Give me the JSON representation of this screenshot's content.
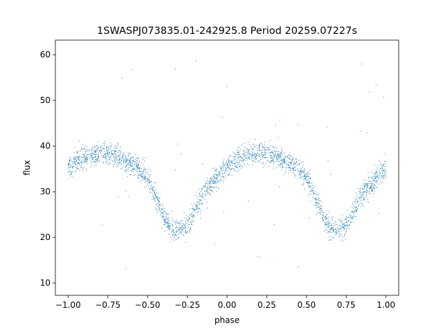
{
  "chart_data": {
    "type": "scatter",
    "title": "1SWASPJ073835.01-242925.8 Period 20259.07227s",
    "xlabel": "phase",
    "ylabel": "flux",
    "xlim": [
      -1.08,
      1.08
    ],
    "ylim": [
      7.3,
      63.2
    ],
    "grid": false,
    "legend": "none",
    "point_color": "#1f77b4",
    "x_ticks": [
      -1.0,
      -0.75,
      -0.5,
      -0.25,
      0.0,
      0.25,
      0.5,
      0.75,
      1.0
    ],
    "x_tick_labels": [
      "−1.00",
      "−0.75",
      "−0.50",
      "−0.25",
      "0.00",
      "0.25",
      "0.50",
      "0.75",
      "1.00"
    ],
    "y_ticks": [
      10,
      20,
      30,
      40,
      50,
      60
    ],
    "y_tick_labels": [
      "10",
      "20",
      "30",
      "40",
      "50",
      "60"
    ],
    "light_curve": {
      "phase": [
        -1.0,
        -0.95,
        -0.9,
        -0.85,
        -0.8,
        -0.75,
        -0.7,
        -0.65,
        -0.6,
        -0.55,
        -0.5,
        -0.45,
        -0.4,
        -0.35,
        -0.3,
        -0.25,
        -0.2,
        -0.15,
        -0.1,
        -0.05,
        0.0,
        0.05,
        0.1,
        0.15,
        0.2,
        0.25,
        0.3,
        0.35,
        0.4,
        0.45,
        0.5,
        0.55,
        0.6,
        0.65,
        0.7,
        0.75,
        0.8,
        0.85,
        0.9,
        0.95,
        1.0
      ],
      "flux": [
        35,
        36.5,
        37.5,
        38,
        38.5,
        38.5,
        38,
        37,
        36,
        35,
        33,
        29,
        24.5,
        22,
        21.5,
        22.5,
        26,
        29.5,
        31.5,
        33.5,
        35,
        36.5,
        37.5,
        38,
        38.5,
        38.5,
        38,
        37,
        36,
        35,
        33,
        29,
        24.5,
        22,
        21.5,
        22.5,
        26,
        29.5,
        31.5,
        33.5,
        35
      ],
      "scatter": 1.2,
      "n_points": 2600,
      "outlier_fraction": 0.015
    }
  }
}
